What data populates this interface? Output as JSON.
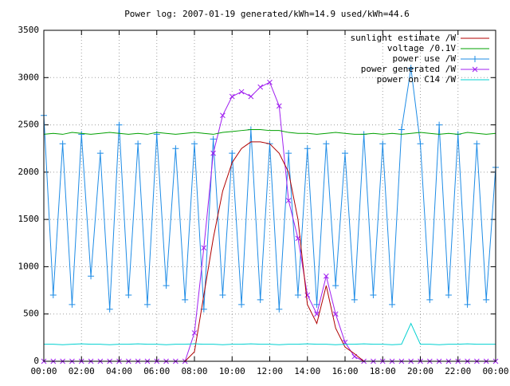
{
  "chart_data": {
    "type": "line",
    "title": "Power log: 2007-01-19 generated/kWh=14.9 used/kWh=44.6",
    "x": [
      0,
      0.5,
      1,
      1.5,
      2,
      2.5,
      3,
      3.5,
      4,
      4.5,
      5,
      5.5,
      6,
      6.5,
      7,
      7.5,
      8,
      8.5,
      9,
      9.5,
      10,
      10.5,
      11,
      11.5,
      12,
      12.5,
      13,
      13.5,
      14,
      14.5,
      15,
      15.5,
      16,
      16.5,
      17,
      17.5,
      18,
      18.5,
      19,
      19.5,
      20,
      20.5,
      21,
      21.5,
      22,
      22.5,
      23,
      23.5,
      24
    ],
    "xlim": [
      0,
      24
    ],
    "xticks": [
      {
        "value": 0,
        "label": "00:00"
      },
      {
        "value": 2,
        "label": "02:00"
      },
      {
        "value": 4,
        "label": "04:00"
      },
      {
        "value": 6,
        "label": "06:00"
      },
      {
        "value": 8,
        "label": "08:00"
      },
      {
        "value": 10,
        "label": "10:00"
      },
      {
        "value": 12,
        "label": "12:00"
      },
      {
        "value": 14,
        "label": "14:00"
      },
      {
        "value": 16,
        "label": "16:00"
      },
      {
        "value": 18,
        "label": "18:00"
      },
      {
        "value": 20,
        "label": "20:00"
      },
      {
        "value": 22,
        "label": "22:00"
      },
      {
        "value": 24,
        "label": "00:00"
      }
    ],
    "ylim": [
      0,
      3500
    ],
    "yticks": [
      0,
      500,
      1000,
      1500,
      2000,
      2500,
      3000,
      3500
    ],
    "grid": true,
    "legend": "top-right",
    "series": [
      {
        "name": "sunlight estimate /W",
        "color": "#b00000",
        "marker": "none",
        "values": [
          0,
          0,
          0,
          0,
          0,
          0,
          0,
          0,
          0,
          0,
          0,
          0,
          0,
          0,
          0,
          0,
          100,
          700,
          1300,
          1800,
          2100,
          2250,
          2320,
          2320,
          2300,
          2200,
          2000,
          1500,
          600,
          400,
          800,
          350,
          150,
          80,
          0,
          0,
          0,
          0,
          0,
          0,
          0,
          0,
          0,
          0,
          0,
          0,
          0,
          0,
          0
        ]
      },
      {
        "name": "voltage /0.1V",
        "color": "#00a000",
        "marker": "none",
        "values": [
          2400,
          2410,
          2400,
          2420,
          2410,
          2400,
          2410,
          2420,
          2410,
          2400,
          2410,
          2400,
          2420,
          2410,
          2400,
          2410,
          2420,
          2410,
          2400,
          2420,
          2430,
          2440,
          2450,
          2450,
          2440,
          2440,
          2420,
          2410,
          2410,
          2400,
          2410,
          2420,
          2410,
          2400,
          2400,
          2410,
          2400,
          2410,
          2400,
          2410,
          2420,
          2410,
          2400,
          2410,
          2400,
          2420,
          2410,
          2400,
          2410
        ]
      },
      {
        "name": "power use /W",
        "color": "#1e8ce6",
        "marker": "plus",
        "values": [
          2600,
          700,
          2300,
          600,
          2400,
          900,
          2200,
          550,
          2500,
          700,
          2300,
          600,
          2400,
          800,
          2250,
          650,
          2300,
          550,
          2350,
          700,
          2200,
          600,
          2450,
          650,
          2300,
          550,
          2200,
          700,
          2250,
          600,
          2300,
          800,
          2200,
          650,
          2400,
          700,
          2300,
          600,
          2450,
          3100,
          2300,
          650,
          2500,
          700,
          2400,
          600,
          2300,
          650,
          2050
        ]
      },
      {
        "name": "power generated /W",
        "color": "#a020f0",
        "marker": "cross",
        "values": [
          0,
          0,
          0,
          0,
          0,
          0,
          0,
          0,
          0,
          0,
          0,
          0,
          0,
          0,
          0,
          0,
          300,
          1200,
          2200,
          2600,
          2800,
          2850,
          2800,
          2900,
          2950,
          2700,
          1700,
          1300,
          700,
          500,
          900,
          500,
          200,
          50,
          0,
          0,
          0,
          0,
          0,
          0,
          0,
          0,
          0,
          0,
          0,
          0,
          0,
          0,
          0
        ]
      },
      {
        "name": "power on C14 /W",
        "color": "#00d0d0",
        "marker": "none",
        "values": [
          180,
          180,
          175,
          180,
          185,
          180,
          180,
          175,
          180,
          180,
          185,
          180,
          180,
          175,
          180,
          180,
          185,
          180,
          180,
          175,
          180,
          180,
          185,
          180,
          180,
          175,
          180,
          180,
          185,
          180,
          180,
          175,
          180,
          180,
          185,
          180,
          180,
          175,
          180,
          400,
          180,
          180,
          175,
          180,
          180,
          185,
          180,
          180,
          180
        ]
      }
    ]
  }
}
